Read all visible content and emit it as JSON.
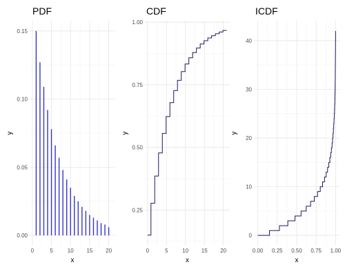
{
  "chart_data": [
    {
      "type": "bar",
      "title": "PDF",
      "xlabel": "x",
      "ylabel": "y",
      "xlim": [
        -0.7,
        21.7
      ],
      "ylim": [
        -0.0075,
        0.1575
      ],
      "x_ticks": [
        0,
        5,
        10,
        15,
        20
      ],
      "y_ticks": [
        0.0,
        0.05,
        0.1,
        0.15
      ],
      "y_tick_labels": [
        "0.00",
        "0.05",
        "0.10",
        "0.15"
      ],
      "grid": true,
      "color": "#3333cc",
      "x": [
        1,
        2,
        3,
        4,
        5,
        6,
        7,
        8,
        9,
        10,
        11,
        12,
        13,
        14,
        15,
        16,
        17,
        18,
        19,
        20
      ],
      "values": [
        0.15,
        0.127,
        0.109,
        0.092,
        0.078,
        0.066,
        0.057,
        0.048,
        0.041,
        0.035,
        0.029,
        0.025,
        0.021,
        0.018,
        0.015,
        0.013,
        0.011,
        0.009,
        0.008,
        0.006
      ]
    },
    {
      "type": "line",
      "title": "CDF",
      "xlabel": "x",
      "ylabel": "y",
      "xlim": [
        -0.7,
        21.7
      ],
      "ylim": [
        0.108,
        1.006
      ],
      "x_ticks": [
        0,
        5,
        10,
        15,
        20
      ],
      "y_ticks": [
        0.25,
        0.5,
        0.75,
        1.0
      ],
      "y_tick_labels": [
        "0.25",
        "0.50",
        "0.75",
        "1.00"
      ],
      "grid": true,
      "step": true,
      "color": "#1a1a5e",
      "x": [
        0,
        1,
        2,
        3,
        4,
        5,
        6,
        7,
        8,
        9,
        10,
        11,
        12,
        13,
        14,
        15,
        16,
        17,
        18,
        19,
        20
      ],
      "values": [
        0.15,
        0.277,
        0.386,
        0.478,
        0.556,
        0.623,
        0.679,
        0.727,
        0.768,
        0.803,
        0.833,
        0.858,
        0.879,
        0.897,
        0.913,
        0.926,
        0.937,
        0.946,
        0.954,
        0.961,
        0.967
      ]
    },
    {
      "type": "line",
      "title": "ICDF",
      "xlabel": "x",
      "ylabel": "y",
      "xlim": [
        -0.05,
        1.05
      ],
      "ylim": [
        -2.1,
        44.1
      ],
      "x_ticks": [
        0.0,
        0.25,
        0.5,
        0.75,
        1.0
      ],
      "x_tick_labels": [
        "0.00",
        "0.25",
        "0.50",
        "0.75",
        "1.00"
      ],
      "y_ticks": [
        0,
        10,
        20,
        30,
        40
      ],
      "grid": true,
      "step": true,
      "color": "#1a1a5e",
      "x": [
        0.0,
        0.15,
        0.278,
        0.386,
        0.478,
        0.556,
        0.622,
        0.679,
        0.727,
        0.768,
        0.803,
        0.833,
        0.858,
        0.879,
        0.897,
        0.913,
        0.926,
        0.937,
        0.946,
        0.955,
        0.961,
        0.967,
        0.972,
        0.976,
        0.98,
        0.983,
        0.986,
        0.988,
        0.99,
        0.991,
        0.993,
        0.994,
        0.995,
        0.996,
        0.996,
        0.997,
        0.997,
        0.998,
        0.998,
        0.999,
        0.999,
        1.0
      ],
      "values": [
        0,
        1,
        2,
        3,
        4,
        5,
        6,
        7,
        8,
        9,
        10,
        11,
        12,
        13,
        14,
        15,
        16,
        17,
        18,
        19,
        20,
        21,
        22,
        23,
        24,
        25,
        26,
        27,
        28,
        29,
        30,
        31,
        32,
        33,
        34,
        35,
        36,
        37,
        38,
        39,
        40,
        42
      ]
    }
  ]
}
